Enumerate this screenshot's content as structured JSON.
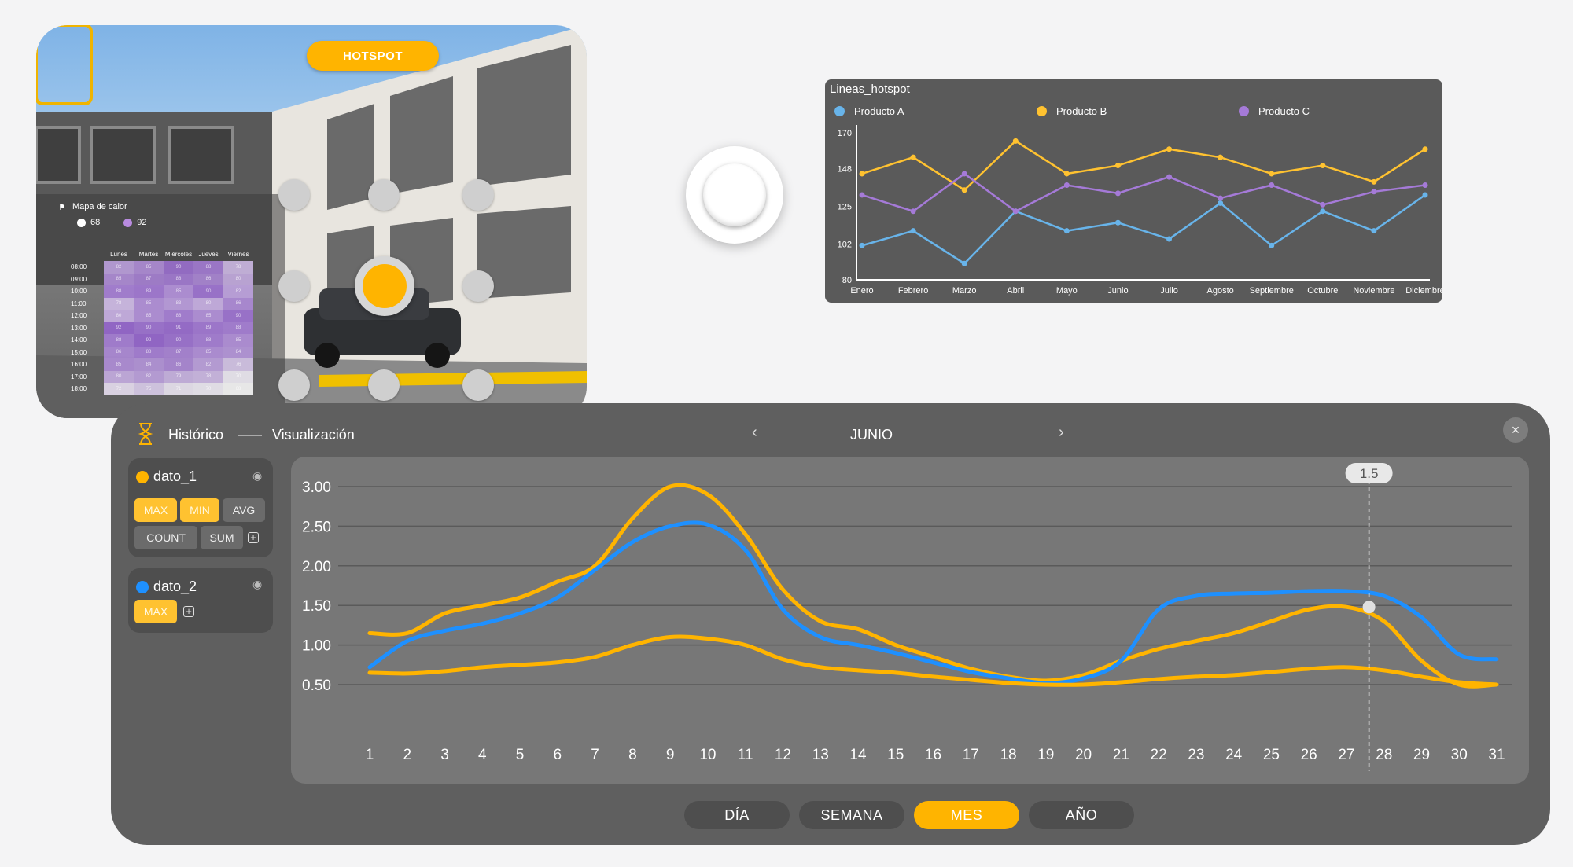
{
  "scene": {
    "hotspot_label": "HOTSPOT",
    "heatmap": {
      "title": "Mapa de calor",
      "legend": [
        {
          "label": "68",
          "color": "#ffffff"
        },
        {
          "label": "92",
          "color": "#b98be0"
        }
      ],
      "days": [
        "Lunes",
        "Martes",
        "Miércoles",
        "Jueves",
        "Viernes"
      ],
      "hours": [
        "08:00",
        "09:00",
        "10:00",
        "11:00",
        "12:00",
        "13:00",
        "14:00",
        "15:00",
        "16:00",
        "17:00",
        "18:00"
      ],
      "values": [
        [
          82,
          85,
          90,
          88,
          78
        ],
        [
          85,
          87,
          88,
          86,
          80
        ],
        [
          88,
          89,
          85,
          90,
          82
        ],
        [
          78,
          85,
          83,
          80,
          86
        ],
        [
          80,
          85,
          88,
          85,
          90
        ],
        [
          92,
          90,
          91,
          89,
          88
        ],
        [
          88,
          92,
          90,
          88,
          85
        ],
        [
          86,
          88,
          87,
          85,
          84
        ],
        [
          85,
          84,
          86,
          82,
          76
        ],
        [
          80,
          82,
          79,
          78,
          70
        ],
        [
          72,
          75,
          71,
          70,
          68
        ]
      ],
      "icons": [
        "flag-icon"
      ]
    }
  },
  "lines_chart": {
    "chart_data": {
      "type": "line",
      "title": "Lineas_hotspot",
      "categories": [
        "Enero",
        "Febrero",
        "Marzo",
        "Abril",
        "Mayo",
        "Junio",
        "Julio",
        "Agosto",
        "Septiembre",
        "Octubre",
        "Noviembre",
        "Diciembre"
      ],
      "yticks": [
        "170",
        "148",
        "125",
        "102",
        "80"
      ],
      "ylim": [
        80,
        170
      ],
      "series": [
        {
          "name": "Producto A",
          "color": "#68b4ea",
          "values": [
            101,
            110,
            90,
            122,
            110,
            115,
            105,
            127,
            101,
            122,
            110,
            132
          ]
        },
        {
          "name": "Producto B",
          "color": "#ffc230",
          "values": [
            145,
            155,
            135,
            165,
            145,
            150,
            160,
            155,
            145,
            150,
            140,
            160
          ]
        },
        {
          "name": "Producto C",
          "color": "#a57ad8",
          "values": [
            132,
            122,
            145,
            122,
            138,
            133,
            143,
            130,
            138,
            126,
            134,
            138
          ]
        }
      ]
    }
  },
  "historic": {
    "title": "Histórico",
    "subtitle": "Visualización",
    "month": "JUNIO",
    "nav_prev": "‹",
    "nav_next": "›",
    "close": "×",
    "series_cards": [
      {
        "name": "dato_1",
        "color": "#ffb400",
        "chips": [
          {
            "label": "MAX",
            "on": true
          },
          {
            "label": "MIN",
            "on": true
          },
          {
            "label": "AVG",
            "on": false
          },
          {
            "label": "COUNT",
            "on": false
          },
          {
            "label": "SUM",
            "on": false
          }
        ]
      },
      {
        "name": "dato_2",
        "color": "#1e90ff",
        "chips": [
          {
            "label": "MAX",
            "on": true
          }
        ]
      }
    ],
    "tabs": [
      {
        "label": "DÍA",
        "active": false
      },
      {
        "label": "SEMANA",
        "active": false
      },
      {
        "label": "MES",
        "active": true
      },
      {
        "label": "AÑO",
        "active": false
      }
    ],
    "chart_data": {
      "type": "line",
      "x": [
        1,
        2,
        3,
        4,
        5,
        6,
        7,
        8,
        9,
        10,
        11,
        12,
        13,
        14,
        15,
        16,
        17,
        18,
        19,
        20,
        21,
        22,
        23,
        24,
        25,
        26,
        27,
        28,
        29,
        30,
        31
      ],
      "yticks": [
        "3.00",
        "2.50",
        "2.00",
        "1.50",
        "1.00",
        "0.50"
      ],
      "ylim": [
        0.5,
        3.0
      ],
      "tooltip": {
        "x": 27.6,
        "label": "1.5",
        "marker_y": 1.48
      },
      "series": [
        {
          "color": "#ffb400",
          "values": [
            1.15,
            1.15,
            1.4,
            1.5,
            1.6,
            1.8,
            2.0,
            2.6,
            3.0,
            2.9,
            2.4,
            1.7,
            1.3,
            1.2,
            1.0,
            0.85,
            0.7,
            0.6,
            0.55,
            0.62,
            0.8,
            0.95,
            1.05,
            1.15,
            1.3,
            1.45,
            1.48,
            1.3,
            0.8,
            0.5,
            0.5
          ]
        },
        {
          "color": "#1e90ff",
          "values": [
            0.72,
            1.05,
            1.18,
            1.27,
            1.4,
            1.6,
            1.95,
            2.3,
            2.5,
            2.52,
            2.2,
            1.45,
            1.1,
            1.0,
            0.9,
            0.78,
            0.66,
            0.58,
            0.52,
            0.58,
            0.8,
            1.45,
            1.62,
            1.65,
            1.66,
            1.68,
            1.68,
            1.62,
            1.35,
            0.88,
            0.82
          ]
        },
        {
          "color": "#ffb400",
          "values": [
            0.65,
            0.64,
            0.67,
            0.72,
            0.75,
            0.78,
            0.85,
            1.0,
            1.1,
            1.08,
            1.0,
            0.82,
            0.72,
            0.68,
            0.65,
            0.6,
            0.56,
            0.52,
            0.5,
            0.5,
            0.53,
            0.57,
            0.6,
            0.62,
            0.66,
            0.7,
            0.72,
            0.68,
            0.6,
            0.53,
            0.5
          ]
        }
      ]
    }
  }
}
